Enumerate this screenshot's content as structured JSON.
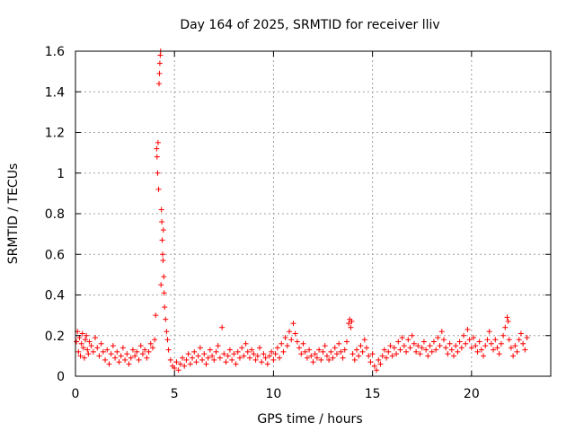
{
  "chart_data": {
    "type": "scatter",
    "title": "Day 164 of 2025, SRMTID for receiver lliv",
    "xlabel": "GPS time / hours",
    "ylabel": "SRMTID / TECUs",
    "xlim": [
      0,
      24
    ],
    "ylim": [
      0,
      1.6
    ],
    "grid": true,
    "marker": "+",
    "color": "#ff0000",
    "x_ticks": [
      0,
      5,
      10,
      15,
      20
    ],
    "x_tick_labels": [
      "0",
      "5",
      "10",
      "15",
      "20"
    ],
    "y_ticks": [
      0,
      0.2,
      0.4,
      0.6,
      0.8,
      1,
      1.2,
      1.4,
      1.6
    ],
    "y_tick_labels": [
      "0",
      "0.2",
      "0.4",
      "0.6",
      "0.8",
      "1",
      "1.2",
      "1.4",
      "1.6"
    ],
    "series": [
      {
        "name": "SRMTID",
        "points": [
          [
            0.05,
            0.17
          ],
          [
            0.1,
            0.22
          ],
          [
            0.15,
            0.12
          ],
          [
            0.2,
            0.19
          ],
          [
            0.25,
            0.1
          ],
          [
            0.3,
            0.16
          ],
          [
            0.35,
            0.21
          ],
          [
            0.4,
            0.14
          ],
          [
            0.45,
            0.09
          ],
          [
            0.5,
            0.18
          ],
          [
            0.55,
            0.2
          ],
          [
            0.6,
            0.13
          ],
          [
            0.65,
            0.11
          ],
          [
            0.7,
            0.17
          ],
          [
            0.8,
            0.15
          ],
          [
            0.9,
            0.12
          ],
          [
            1.0,
            0.19
          ],
          [
            1.1,
            0.14
          ],
          [
            1.2,
            0.1
          ],
          [
            1.3,
            0.16
          ],
          [
            1.4,
            0.12
          ],
          [
            1.5,
            0.08
          ],
          [
            1.6,
            0.13
          ],
          [
            1.7,
            0.06
          ],
          [
            1.8,
            0.11
          ],
          [
            1.9,
            0.15
          ],
          [
            2.0,
            0.09
          ],
          [
            2.1,
            0.12
          ],
          [
            2.2,
            0.07
          ],
          [
            2.3,
            0.1
          ],
          [
            2.4,
            0.14
          ],
          [
            2.5,
            0.08
          ],
          [
            2.6,
            0.11
          ],
          [
            2.7,
            0.06
          ],
          [
            2.8,
            0.09
          ],
          [
            2.9,
            0.13
          ],
          [
            3.0,
            0.1
          ],
          [
            3.1,
            0.12
          ],
          [
            3.2,
            0.08
          ],
          [
            3.3,
            0.15
          ],
          [
            3.4,
            0.11
          ],
          [
            3.5,
            0.13
          ],
          [
            3.6,
            0.09
          ],
          [
            3.7,
            0.12
          ],
          [
            3.8,
            0.16
          ],
          [
            3.9,
            0.14
          ],
          [
            4.0,
            0.18
          ],
          [
            4.05,
            0.3
          ],
          [
            4.1,
            1.12
          ],
          [
            4.12,
            1.08
          ],
          [
            4.15,
            1.0
          ],
          [
            4.17,
            1.15
          ],
          [
            4.2,
            0.92
          ],
          [
            4.22,
            1.44
          ],
          [
            4.24,
            1.49
          ],
          [
            4.26,
            1.54
          ],
          [
            4.28,
            1.58
          ],
          [
            4.3,
            1.6
          ],
          [
            4.32,
            0.45
          ],
          [
            4.34,
            0.82
          ],
          [
            4.36,
            0.76
          ],
          [
            4.38,
            0.67
          ],
          [
            4.4,
            0.6
          ],
          [
            4.42,
            0.57
          ],
          [
            4.44,
            0.72
          ],
          [
            4.46,
            0.49
          ],
          [
            4.48,
            0.41
          ],
          [
            4.5,
            0.34
          ],
          [
            4.55,
            0.28
          ],
          [
            4.6,
            0.22
          ],
          [
            4.65,
            0.18
          ],
          [
            4.7,
            0.13
          ],
          [
            4.8,
            0.08
          ],
          [
            4.9,
            0.05
          ],
          [
            5.0,
            0.04
          ],
          [
            5.1,
            0.07
          ],
          [
            5.2,
            0.03
          ],
          [
            5.3,
            0.06
          ],
          [
            5.4,
            0.09
          ],
          [
            5.5,
            0.05
          ],
          [
            5.6,
            0.08
          ],
          [
            5.7,
            0.11
          ],
          [
            5.8,
            0.06
          ],
          [
            5.9,
            0.09
          ],
          [
            6.0,
            0.12
          ],
          [
            6.1,
            0.07
          ],
          [
            6.2,
            0.1
          ],
          [
            6.3,
            0.14
          ],
          [
            6.4,
            0.08
          ],
          [
            6.5,
            0.11
          ],
          [
            6.6,
            0.06
          ],
          [
            6.7,
            0.09
          ],
          [
            6.8,
            0.13
          ],
          [
            6.9,
            0.1
          ],
          [
            7.0,
            0.08
          ],
          [
            7.1,
            0.12
          ],
          [
            7.2,
            0.15
          ],
          [
            7.3,
            0.09
          ],
          [
            7.4,
            0.24
          ],
          [
            7.5,
            0.11
          ],
          [
            7.6,
            0.07
          ],
          [
            7.7,
            0.1
          ],
          [
            7.8,
            0.13
          ],
          [
            7.9,
            0.08
          ],
          [
            8.0,
            0.11
          ],
          [
            8.1,
            0.06
          ],
          [
            8.2,
            0.12
          ],
          [
            8.3,
            0.09
          ],
          [
            8.4,
            0.14
          ],
          [
            8.5,
            0.1
          ],
          [
            8.6,
            0.16
          ],
          [
            8.7,
            0.12
          ],
          [
            8.8,
            0.09
          ],
          [
            8.9,
            0.13
          ],
          [
            9.0,
            0.11
          ],
          [
            9.1,
            0.08
          ],
          [
            9.2,
            0.1
          ],
          [
            9.3,
            0.14
          ],
          [
            9.4,
            0.07
          ],
          [
            9.5,
            0.11
          ],
          [
            9.6,
            0.09
          ],
          [
            9.7,
            0.06
          ],
          [
            9.8,
            0.1
          ],
          [
            9.9,
            0.12
          ],
          [
            10.0,
            0.08
          ],
          [
            10.1,
            0.11
          ],
          [
            10.2,
            0.14
          ],
          [
            10.3,
            0.09
          ],
          [
            10.4,
            0.16
          ],
          [
            10.5,
            0.12
          ],
          [
            10.6,
            0.19
          ],
          [
            10.7,
            0.15
          ],
          [
            10.8,
            0.22
          ],
          [
            10.9,
            0.18
          ],
          [
            11.0,
            0.26
          ],
          [
            11.1,
            0.21
          ],
          [
            11.2,
            0.17
          ],
          [
            11.3,
            0.14
          ],
          [
            11.4,
            0.11
          ],
          [
            11.5,
            0.16
          ],
          [
            11.6,
            0.12
          ],
          [
            11.7,
            0.09
          ],
          [
            11.8,
            0.13
          ],
          [
            11.9,
            0.1
          ],
          [
            12.0,
            0.07
          ],
          [
            12.1,
            0.11
          ],
          [
            12.2,
            0.09
          ],
          [
            12.3,
            0.13
          ],
          [
            12.4,
            0.08
          ],
          [
            12.5,
            0.12
          ],
          [
            12.6,
            0.15
          ],
          [
            12.7,
            0.1
          ],
          [
            12.8,
            0.08
          ],
          [
            12.9,
            0.12
          ],
          [
            13.0,
            0.09
          ],
          [
            13.1,
            0.14
          ],
          [
            13.2,
            0.11
          ],
          [
            13.3,
            0.16
          ],
          [
            13.4,
            0.12
          ],
          [
            13.5,
            0.09
          ],
          [
            13.6,
            0.13
          ],
          [
            13.7,
            0.17
          ],
          [
            13.8,
            0.26
          ],
          [
            13.85,
            0.28
          ],
          [
            13.9,
            0.24
          ],
          [
            13.95,
            0.27
          ],
          [
            14.0,
            0.11
          ],
          [
            14.1,
            0.08
          ],
          [
            14.2,
            0.13
          ],
          [
            14.3,
            0.1
          ],
          [
            14.4,
            0.15
          ],
          [
            14.5,
            0.12
          ],
          [
            14.6,
            0.18
          ],
          [
            14.7,
            0.14
          ],
          [
            14.8,
            0.1
          ],
          [
            14.9,
            0.07
          ],
          [
            15.0,
            0.11
          ],
          [
            15.1,
            0.05
          ],
          [
            15.2,
            0.03
          ],
          [
            15.3,
            0.08
          ],
          [
            15.4,
            0.06
          ],
          [
            15.5,
            0.1
          ],
          [
            15.6,
            0.13
          ],
          [
            15.7,
            0.09
          ],
          [
            15.8,
            0.12
          ],
          [
            15.9,
            0.15
          ],
          [
            16.0,
            0.1
          ],
          [
            16.1,
            0.14
          ],
          [
            16.2,
            0.11
          ],
          [
            16.3,
            0.17
          ],
          [
            16.4,
            0.13
          ],
          [
            16.5,
            0.19
          ],
          [
            16.6,
            0.15
          ],
          [
            16.7,
            0.12
          ],
          [
            16.8,
            0.18
          ],
          [
            16.9,
            0.14
          ],
          [
            17.0,
            0.2
          ],
          [
            17.1,
            0.16
          ],
          [
            17.2,
            0.12
          ],
          [
            17.3,
            0.15
          ],
          [
            17.4,
            0.11
          ],
          [
            17.5,
            0.14
          ],
          [
            17.6,
            0.17
          ],
          [
            17.7,
            0.13
          ],
          [
            17.8,
            0.1
          ],
          [
            17.9,
            0.15
          ],
          [
            18.0,
            0.12
          ],
          [
            18.1,
            0.17
          ],
          [
            18.2,
            0.13
          ],
          [
            18.3,
            0.19
          ],
          [
            18.4,
            0.15
          ],
          [
            18.5,
            0.22
          ],
          [
            18.6,
            0.18
          ],
          [
            18.7,
            0.14
          ],
          [
            18.8,
            0.11
          ],
          [
            18.9,
            0.16
          ],
          [
            19.0,
            0.13
          ],
          [
            19.1,
            0.1
          ],
          [
            19.2,
            0.15
          ],
          [
            19.3,
            0.12
          ],
          [
            19.4,
            0.17
          ],
          [
            19.5,
            0.14
          ],
          [
            19.6,
            0.2
          ],
          [
            19.7,
            0.16
          ],
          [
            19.8,
            0.23
          ],
          [
            19.9,
            0.18
          ],
          [
            20.0,
            0.14
          ],
          [
            20.1,
            0.19
          ],
          [
            20.2,
            0.15
          ],
          [
            20.3,
            0.12
          ],
          [
            20.4,
            0.17
          ],
          [
            20.5,
            0.13
          ],
          [
            20.6,
            0.1
          ],
          [
            20.7,
            0.15
          ],
          [
            20.8,
            0.18
          ],
          [
            20.9,
            0.22
          ],
          [
            21.0,
            0.16
          ],
          [
            21.1,
            0.13
          ],
          [
            21.2,
            0.18
          ],
          [
            21.3,
            0.14
          ],
          [
            21.4,
            0.11
          ],
          [
            21.5,
            0.16
          ],
          [
            21.6,
            0.2
          ],
          [
            21.7,
            0.24
          ],
          [
            21.8,
            0.29
          ],
          [
            21.85,
            0.27
          ],
          [
            21.9,
            0.18
          ],
          [
            22.0,
            0.14
          ],
          [
            22.1,
            0.1
          ],
          [
            22.2,
            0.15
          ],
          [
            22.3,
            0.12
          ],
          [
            22.4,
            0.18
          ],
          [
            22.5,
            0.21
          ],
          [
            22.6,
            0.16
          ],
          [
            22.7,
            0.13
          ],
          [
            22.8,
            0.19
          ]
        ]
      }
    ]
  }
}
